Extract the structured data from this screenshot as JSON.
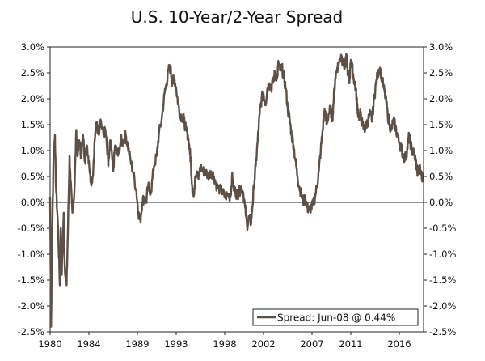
{
  "chart_data": {
    "type": "line",
    "title": "U.S. 10-Year/2-Year Spread",
    "xlabel": "",
    "ylabel": "",
    "xlim": [
      1980,
      2018.5
    ],
    "ylim": [
      -2.5,
      3.0
    ],
    "x_ticks": [
      1980,
      1984,
      1989,
      1993,
      1998,
      2002,
      2007,
      2011,
      2016
    ],
    "x_tick_labels": [
      "1980",
      "1984",
      "1989",
      "1993",
      "1998",
      "2002",
      "2007",
      "2011",
      "2016"
    ],
    "y_ticks": [
      -2.5,
      -2.0,
      -1.5,
      -1.0,
      -0.5,
      0.0,
      0.5,
      1.0,
      1.5,
      2.0,
      2.5,
      3.0
    ],
    "y_tick_labels": [
      "-2.5%",
      "-2.0%",
      "-1.5%",
      "-1.0%",
      "-0.5%",
      "0.0%",
      "0.5%",
      "1.0%",
      "1.5%",
      "2.0%",
      "2.5%",
      "3.0%"
    ],
    "grid": false,
    "zero_line": true,
    "legend": {
      "label": "Spread: Jun-08 @ 0.44%",
      "position": "bottom-right"
    },
    "series": [
      {
        "name": "Spread",
        "color": "#5c5047",
        "points": [
          [
            1980.0,
            0.1
          ],
          [
            1980.1,
            -2.4
          ],
          [
            1980.2,
            -0.8
          ],
          [
            1980.35,
            0.9
          ],
          [
            1980.5,
            1.3
          ],
          [
            1980.6,
            0.3
          ],
          [
            1980.8,
            -0.4
          ],
          [
            1981.0,
            -1.6
          ],
          [
            1981.1,
            -0.5
          ],
          [
            1981.2,
            -1.4
          ],
          [
            1981.4,
            -0.2
          ],
          [
            1981.5,
            -1.2
          ],
          [
            1981.7,
            -1.6
          ],
          [
            1981.85,
            -0.4
          ],
          [
            1982.0,
            0.9
          ],
          [
            1982.1,
            0.4
          ],
          [
            1982.3,
            -0.2
          ],
          [
            1982.5,
            0.2
          ],
          [
            1982.7,
            1.4
          ],
          [
            1982.85,
            0.9
          ],
          [
            1983.0,
            1.2
          ],
          [
            1983.2,
            0.9
          ],
          [
            1983.4,
            1.3
          ],
          [
            1983.6,
            0.8
          ],
          [
            1983.8,
            1.1
          ],
          [
            1984.0,
            0.8
          ],
          [
            1984.2,
            0.4
          ],
          [
            1984.4,
            0.5
          ],
          [
            1984.6,
            1.2
          ],
          [
            1984.8,
            1.55
          ],
          [
            1985.0,
            1.35
          ],
          [
            1985.2,
            1.6
          ],
          [
            1985.5,
            1.3
          ],
          [
            1985.7,
            1.4
          ],
          [
            1986.0,
            0.7
          ],
          [
            1986.2,
            1.2
          ],
          [
            1986.5,
            0.6
          ],
          [
            1986.7,
            1.1
          ],
          [
            1987.0,
            0.9
          ],
          [
            1987.3,
            1.2
          ],
          [
            1987.5,
            1.15
          ],
          [
            1987.8,
            1.3
          ],
          [
            1988.0,
            1.1
          ],
          [
            1988.3,
            0.8
          ],
          [
            1988.6,
            0.55
          ],
          [
            1988.9,
            0.2
          ],
          [
            1989.1,
            -0.2
          ],
          [
            1989.3,
            -0.35
          ],
          [
            1989.5,
            0.0
          ],
          [
            1989.7,
            0.1
          ],
          [
            1989.9,
            0.0
          ],
          [
            1990.1,
            0.3
          ],
          [
            1990.4,
            0.2
          ],
          [
            1990.7,
            0.7
          ],
          [
            1991.0,
            0.9
          ],
          [
            1991.2,
            1.3
          ],
          [
            1991.5,
            1.6
          ],
          [
            1991.8,
            2.1
          ],
          [
            1992.0,
            2.3
          ],
          [
            1992.2,
            2.55
          ],
          [
            1992.4,
            2.6
          ],
          [
            1992.6,
            2.3
          ],
          [
            1992.8,
            2.4
          ],
          [
            1993.0,
            2.2
          ],
          [
            1993.2,
            1.9
          ],
          [
            1993.4,
            1.7
          ],
          [
            1993.6,
            1.65
          ],
          [
            1993.8,
            1.6
          ],
          [
            1994.0,
            1.4
          ],
          [
            1994.2,
            1.3
          ],
          [
            1994.4,
            1.0
          ],
          [
            1994.5,
            0.8
          ],
          [
            1994.65,
            0.3
          ],
          [
            1994.8,
            0.1
          ],
          [
            1994.95,
            0.5
          ],
          [
            1995.1,
            0.6
          ],
          [
            1995.3,
            0.45
          ],
          [
            1995.5,
            0.7
          ],
          [
            1995.7,
            0.6
          ],
          [
            1996.0,
            0.6
          ],
          [
            1996.3,
            0.5
          ],
          [
            1996.6,
            0.6
          ],
          [
            1996.9,
            0.5
          ],
          [
            1997.2,
            0.3
          ],
          [
            1997.5,
            0.25
          ],
          [
            1997.8,
            0.2
          ],
          [
            1998.0,
            0.1
          ],
          [
            1998.3,
            0.15
          ],
          [
            1998.6,
            0.1
          ],
          [
            1998.75,
            0.5
          ],
          [
            1998.9,
            0.3
          ],
          [
            1999.1,
            0.2
          ],
          [
            1999.3,
            0.15
          ],
          [
            1999.5,
            0.2
          ],
          [
            1999.7,
            0.3
          ],
          [
            1999.9,
            0.2
          ],
          [
            2000.1,
            -0.1
          ],
          [
            2000.3,
            -0.45
          ],
          [
            2000.5,
            -0.3
          ],
          [
            2000.7,
            -0.4
          ],
          [
            2000.85,
            -0.1
          ],
          [
            2001.0,
            0.3
          ],
          [
            2001.2,
            0.7
          ],
          [
            2001.4,
            1.2
          ],
          [
            2001.6,
            1.7
          ],
          [
            2001.8,
            2.0
          ],
          [
            2002.0,
            2.1
          ],
          [
            2002.2,
            1.9
          ],
          [
            2002.4,
            2.2
          ],
          [
            2002.6,
            2.3
          ],
          [
            2002.8,
            2.2
          ],
          [
            2003.0,
            2.35
          ],
          [
            2003.2,
            2.5
          ],
          [
            2003.4,
            2.4
          ],
          [
            2003.55,
            2.7
          ],
          [
            2003.7,
            2.55
          ],
          [
            2003.9,
            2.6
          ],
          [
            2004.1,
            2.4
          ],
          [
            2004.3,
            2.2
          ],
          [
            2004.5,
            1.8
          ],
          [
            2004.7,
            1.6
          ],
          [
            2004.9,
            1.3
          ],
          [
            2005.1,
            1.1
          ],
          [
            2005.3,
            0.8
          ],
          [
            2005.5,
            0.5
          ],
          [
            2005.7,
            0.3
          ],
          [
            2005.9,
            0.15
          ],
          [
            2006.1,
            0.0
          ],
          [
            2006.3,
            0.1
          ],
          [
            2006.5,
            -0.1
          ],
          [
            2006.7,
            -0.15
          ],
          [
            2006.9,
            -0.1
          ],
          [
            2007.1,
            -0.05
          ],
          [
            2007.3,
            0.1
          ],
          [
            2007.5,
            0.3
          ],
          [
            2007.7,
            0.6
          ],
          [
            2007.9,
            1.0
          ],
          [
            2008.1,
            1.4
          ],
          [
            2008.3,
            1.8
          ],
          [
            2008.5,
            1.5
          ],
          [
            2008.7,
            1.7
          ],
          [
            2008.9,
            1.8
          ],
          [
            2009.1,
            1.6
          ],
          [
            2009.2,
            1.9
          ],
          [
            2009.4,
            2.4
          ],
          [
            2009.6,
            2.6
          ],
          [
            2009.8,
            2.7
          ],
          [
            2010.0,
            2.85
          ],
          [
            2010.2,
            2.7
          ],
          [
            2010.4,
            2.6
          ],
          [
            2010.55,
            2.8
          ],
          [
            2010.7,
            2.5
          ],
          [
            2010.85,
            2.3
          ],
          [
            2011.0,
            2.75
          ],
          [
            2011.15,
            2.6
          ],
          [
            2011.3,
            2.4
          ],
          [
            2011.5,
            2.2
          ],
          [
            2011.65,
            1.9
          ],
          [
            2011.8,
            1.65
          ],
          [
            2012.0,
            1.7
          ],
          [
            2012.2,
            1.5
          ],
          [
            2012.4,
            1.4
          ],
          [
            2012.6,
            1.5
          ],
          [
            2012.8,
            1.6
          ],
          [
            2013.0,
            1.7
          ],
          [
            2013.2,
            1.6
          ],
          [
            2013.4,
            2.0
          ],
          [
            2013.6,
            2.3
          ],
          [
            2013.8,
            2.5
          ],
          [
            2014.0,
            2.6
          ],
          [
            2014.2,
            2.4
          ],
          [
            2014.4,
            2.2
          ],
          [
            2014.6,
            2.0
          ],
          [
            2014.8,
            1.7
          ],
          [
            2015.0,
            1.5
          ],
          [
            2015.2,
            1.4
          ],
          [
            2015.4,
            1.6
          ],
          [
            2015.6,
            1.45
          ],
          [
            2015.8,
            1.3
          ],
          [
            2016.0,
            1.15
          ],
          [
            2016.2,
            1.05
          ],
          [
            2016.4,
            0.9
          ],
          [
            2016.6,
            0.85
          ],
          [
            2016.8,
            1.0
          ],
          [
            2016.95,
            1.25
          ],
          [
            2017.1,
            1.2
          ],
          [
            2017.3,
            1.0
          ],
          [
            2017.5,
            0.95
          ],
          [
            2017.7,
            0.8
          ],
          [
            2017.9,
            0.55
          ],
          [
            2018.1,
            0.65
          ],
          [
            2018.25,
            0.55
          ],
          [
            2018.4,
            0.44
          ]
        ]
      }
    ]
  }
}
